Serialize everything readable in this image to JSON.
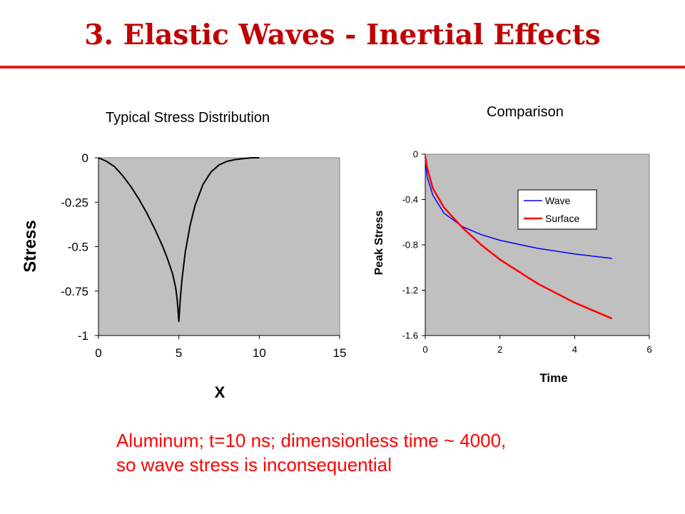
{
  "slide": {
    "title": "3. Elastic Waves - Inertial Effects",
    "caption_line1": "Aluminum; t=10 ns; dimensionless time ~ 4000,",
    "caption_line2": "so wave stress is inconsequential"
  },
  "colors": {
    "title": "#c00000",
    "rule": "#e02020",
    "caption": "#ff0000",
    "plot_bg": "#c0c0c0",
    "wave": "#0000ff",
    "surface": "#ff0000"
  },
  "chart_data": [
    {
      "type": "line",
      "title": "Typical Stress Distribution",
      "xlabel": "X",
      "ylabel": "Stress",
      "xlim": [
        0,
        15
      ],
      "ylim": [
        -1,
        0
      ],
      "xticks": [
        "0",
        "5",
        "10",
        "15"
      ],
      "yticks": [
        "0",
        "-0.25",
        "-0.5",
        "-0.75",
        "-1"
      ],
      "grid": false,
      "series": [
        {
          "color": "#000000",
          "x": [
            0,
            0.5,
            1,
            1.5,
            2,
            2.5,
            3,
            3.5,
            4,
            4.3,
            4.6,
            4.8,
            4.9,
            5,
            5.1,
            5.2,
            5.4,
            5.7,
            6,
            6.5,
            7,
            7.5,
            8,
            8.5,
            9,
            9.5,
            10
          ],
          "y": [
            0,
            -0.02,
            -0.05,
            -0.1,
            -0.16,
            -0.23,
            -0.31,
            -0.4,
            -0.5,
            -0.57,
            -0.65,
            -0.73,
            -0.8,
            -0.92,
            -0.78,
            -0.68,
            -0.53,
            -0.38,
            -0.27,
            -0.15,
            -0.08,
            -0.04,
            -0.02,
            -0.01,
            -0.005,
            0,
            0
          ]
        }
      ]
    },
    {
      "type": "line",
      "title": "Comparison",
      "xlabel": "Time",
      "ylabel": "Peak Stress",
      "xlim": [
        0,
        6
      ],
      "ylim": [
        -1.6,
        0
      ],
      "xticks": [
        "0",
        "2",
        "4",
        "6"
      ],
      "yticks": [
        "0",
        "-0.4",
        "-0.8",
        "-1.2",
        "-1.6"
      ],
      "grid": false,
      "legend": "right",
      "series": [
        {
          "name": "Wave",
          "color": "#0000ff",
          "x": [
            0,
            0.05,
            0.2,
            0.5,
            1,
            1.5,
            2,
            3,
            4,
            5
          ],
          "y": [
            -0.05,
            -0.2,
            -0.36,
            -0.52,
            -0.64,
            -0.71,
            -0.76,
            -0.83,
            -0.88,
            -0.92
          ]
        },
        {
          "name": "Surface",
          "color": "#ff0000",
          "x": [
            0,
            0.05,
            0.2,
            0.5,
            1,
            1.5,
            2,
            3,
            4,
            5
          ],
          "y": [
            -0.02,
            -0.12,
            -0.3,
            -0.47,
            -0.65,
            -0.8,
            -0.93,
            -1.14,
            -1.31,
            -1.45
          ]
        }
      ]
    }
  ]
}
